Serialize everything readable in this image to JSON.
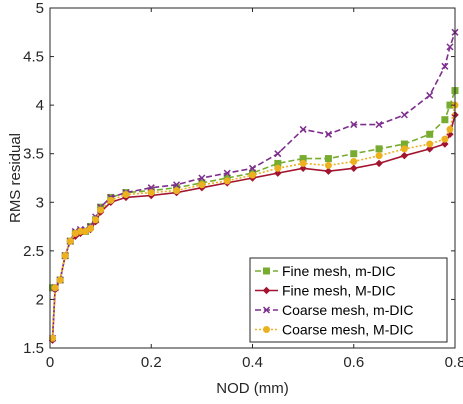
{
  "chart_data": {
    "type": "line",
    "xlabel": "NOD (mm)",
    "ylabel": "RMS residual",
    "xlim": [
      0,
      0.8
    ],
    "ylim": [
      1.5,
      5
    ],
    "xticks": [
      "0",
      "0.2",
      "0.4",
      "0.6",
      "0.8"
    ],
    "yticks": [
      "1.5",
      "2",
      "2.5",
      "3",
      "3.5",
      "4",
      "4.5",
      "5"
    ],
    "grid": false,
    "legend_position": "bottom-right",
    "series": [
      {
        "name": "Fine mesh, m-DIC",
        "color": "#77ac30",
        "style": "dashed",
        "marker": "square",
        "x": [
          0.005,
          0.01,
          0.02,
          0.03,
          0.04,
          0.05,
          0.06,
          0.07,
          0.08,
          0.09,
          0.1,
          0.12,
          0.15,
          0.2,
          0.25,
          0.3,
          0.35,
          0.4,
          0.45,
          0.5,
          0.55,
          0.6,
          0.65,
          0.7,
          0.75,
          0.78,
          0.79,
          0.8
        ],
        "y": [
          2.12,
          2.12,
          2.2,
          2.45,
          2.6,
          2.68,
          2.7,
          2.7,
          2.75,
          2.82,
          2.95,
          3.05,
          3.1,
          3.12,
          3.15,
          3.2,
          3.25,
          3.3,
          3.4,
          3.45,
          3.45,
          3.5,
          3.55,
          3.6,
          3.7,
          3.85,
          4.0,
          4.15
        ]
      },
      {
        "name": "Fine mesh, M-DIC",
        "color": "#a2142f",
        "style": "solid",
        "marker": "diamond",
        "x": [
          0.005,
          0.01,
          0.02,
          0.03,
          0.04,
          0.05,
          0.06,
          0.07,
          0.08,
          0.09,
          0.1,
          0.12,
          0.15,
          0.2,
          0.25,
          0.3,
          0.35,
          0.4,
          0.45,
          0.5,
          0.55,
          0.6,
          0.65,
          0.7,
          0.75,
          0.78,
          0.79,
          0.8
        ],
        "y": [
          1.58,
          2.1,
          2.2,
          2.45,
          2.6,
          2.65,
          2.68,
          2.7,
          2.72,
          2.8,
          2.9,
          3.0,
          3.05,
          3.07,
          3.1,
          3.15,
          3.2,
          3.25,
          3.3,
          3.35,
          3.32,
          3.35,
          3.4,
          3.48,
          3.55,
          3.6,
          3.7,
          3.9
        ]
      },
      {
        "name": "Coarse mesh, m-DIC",
        "color": "#7e2f8e",
        "style": "dashed",
        "marker": "x",
        "x": [
          0.005,
          0.01,
          0.02,
          0.03,
          0.04,
          0.05,
          0.06,
          0.07,
          0.08,
          0.09,
          0.1,
          0.12,
          0.15,
          0.2,
          0.25,
          0.3,
          0.35,
          0.4,
          0.45,
          0.5,
          0.55,
          0.6,
          0.65,
          0.7,
          0.75,
          0.78,
          0.79,
          0.8
        ],
        "y": [
          1.6,
          2.12,
          2.2,
          2.45,
          2.6,
          2.7,
          2.72,
          2.72,
          2.75,
          2.85,
          2.95,
          3.05,
          3.1,
          3.15,
          3.18,
          3.25,
          3.3,
          3.35,
          3.5,
          3.75,
          3.7,
          3.8,
          3.8,
          3.9,
          4.1,
          4.4,
          4.6,
          4.75
        ]
      },
      {
        "name": "Coarse mesh, M-DIC",
        "color": "#edb120",
        "style": "dotted",
        "marker": "circle",
        "x": [
          0.005,
          0.01,
          0.02,
          0.03,
          0.04,
          0.05,
          0.06,
          0.07,
          0.08,
          0.09,
          0.1,
          0.12,
          0.15,
          0.2,
          0.25,
          0.3,
          0.35,
          0.4,
          0.45,
          0.5,
          0.55,
          0.6,
          0.65,
          0.7,
          0.75,
          0.78,
          0.79,
          0.8
        ],
        "y": [
          1.6,
          2.12,
          2.2,
          2.45,
          2.6,
          2.68,
          2.7,
          2.7,
          2.73,
          2.82,
          2.92,
          3.02,
          3.08,
          3.1,
          3.12,
          3.18,
          3.22,
          3.28,
          3.35,
          3.4,
          3.38,
          3.42,
          3.48,
          3.55,
          3.6,
          3.65,
          3.75,
          4.0
        ]
      }
    ]
  }
}
